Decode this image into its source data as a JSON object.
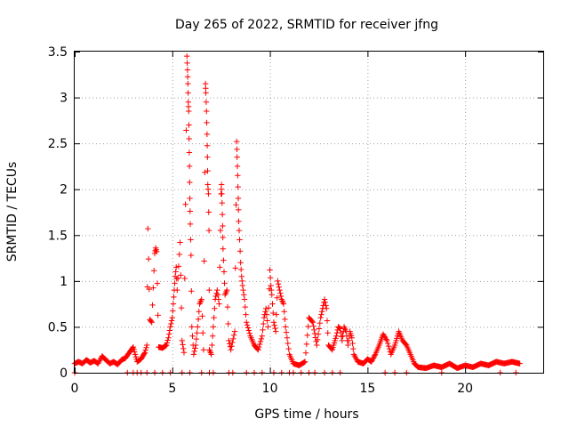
{
  "chart_data": {
    "type": "scatter",
    "title": "Day 265 of 2022, SRMTID for receiver jfng",
    "xlabel": "GPS time / hours",
    "ylabel": "SRMTID / TECUs",
    "xlim": [
      0,
      24
    ],
    "ylim": [
      0,
      3.5
    ],
    "xticks": [
      0,
      5,
      10,
      15,
      20
    ],
    "xtick_labels": [
      "0",
      "5",
      "10",
      "15",
      "20"
    ],
    "yticks": [
      0,
      0.5,
      1,
      1.5,
      2,
      2.5,
      3,
      3.5
    ],
    "ytick_labels": [
      "0",
      "0.5",
      "1",
      "1.5",
      "2",
      "2.5",
      "3",
      "3.5"
    ],
    "grid": true,
    "marker": "+",
    "color": "#ff0000",
    "series": [
      {
        "name": "SRMTID",
        "points": [
          [
            0.0,
            0.1
          ],
          [
            0.2,
            0.12
          ],
          [
            0.4,
            0.1
          ],
          [
            0.6,
            0.14
          ],
          [
            0.8,
            0.11
          ],
          [
            1.0,
            0.13
          ],
          [
            1.2,
            0.1
          ],
          [
            1.4,
            0.18
          ],
          [
            1.6,
            0.14
          ],
          [
            1.8,
            0.1
          ],
          [
            2.0,
            0.12
          ],
          [
            2.2,
            0.09
          ],
          [
            2.4,
            0.14
          ],
          [
            2.6,
            0.16
          ],
          [
            2.8,
            0.22
          ],
          [
            3.0,
            0.28
          ],
          [
            3.2,
            0.12
          ],
          [
            3.4,
            0.15
          ],
          [
            3.6,
            0.22
          ],
          [
            3.7,
            0.3
          ],
          [
            3.75,
            1.57
          ],
          [
            3.85,
            0.58
          ],
          [
            3.95,
            0.55
          ],
          [
            4.1,
            1.3
          ],
          [
            4.15,
            1.36
          ],
          [
            4.2,
            1.32
          ],
          [
            4.3,
            0.28
          ],
          [
            4.5,
            0.27
          ],
          [
            4.7,
            0.3
          ],
          [
            4.8,
            0.38
          ],
          [
            4.9,
            0.5
          ],
          [
            5.0,
            0.6
          ],
          [
            5.05,
            0.75
          ],
          [
            5.1,
            0.9
          ],
          [
            5.15,
            1.05
          ],
          [
            5.2,
            1.15
          ],
          [
            5.25,
            0.9
          ],
          [
            5.4,
            1.42
          ],
          [
            5.5,
            0.35
          ],
          [
            5.6,
            0.22
          ],
          [
            5.75,
            3.45
          ],
          [
            5.78,
            3.3
          ],
          [
            5.8,
            3.15
          ],
          [
            5.82,
            2.95
          ],
          [
            5.84,
            2.85
          ],
          [
            5.86,
            2.55
          ],
          [
            5.88,
            2.25
          ],
          [
            5.9,
            1.9
          ],
          [
            5.92,
            1.62
          ],
          [
            5.96,
            1.28
          ],
          [
            6.0,
            0.5
          ],
          [
            6.1,
            0.2
          ],
          [
            6.2,
            0.3
          ],
          [
            6.3,
            0.5
          ],
          [
            6.4,
            0.75
          ],
          [
            6.5,
            0.8
          ],
          [
            6.6,
            0.25
          ],
          [
            6.7,
            3.15
          ],
          [
            6.72,
            3.05
          ],
          [
            6.75,
            2.85
          ],
          [
            6.78,
            2.6
          ],
          [
            6.8,
            2.35
          ],
          [
            6.82,
            2.05
          ],
          [
            6.85,
            1.95
          ],
          [
            6.88,
            1.55
          ],
          [
            6.9,
            0.25
          ],
          [
            7.0,
            0.2
          ],
          [
            7.2,
            0.8
          ],
          [
            7.3,
            0.9
          ],
          [
            7.4,
            0.75
          ],
          [
            7.5,
            1.95
          ],
          [
            7.52,
            2.05
          ],
          [
            7.55,
            1.85
          ],
          [
            7.58,
            1.6
          ],
          [
            7.6,
            1.35
          ],
          [
            7.65,
            1.1
          ],
          [
            7.7,
            0.85
          ],
          [
            7.8,
            0.9
          ],
          [
            7.9,
            0.35
          ],
          [
            8.0,
            0.25
          ],
          [
            8.2,
            0.45
          ],
          [
            8.3,
            2.52
          ],
          [
            8.32,
            2.35
          ],
          [
            8.35,
            2.15
          ],
          [
            8.38,
            1.9
          ],
          [
            8.4,
            1.65
          ],
          [
            8.45,
            1.45
          ],
          [
            8.5,
            1.2
          ],
          [
            8.55,
            1.05
          ],
          [
            8.6,
            0.95
          ],
          [
            8.7,
            0.8
          ],
          [
            8.8,
            0.55
          ],
          [
            9.0,
            0.4
          ],
          [
            9.2,
            0.3
          ],
          [
            9.4,
            0.25
          ],
          [
            9.6,
            0.4
          ],
          [
            9.7,
            0.6
          ],
          [
            9.8,
            0.7
          ],
          [
            9.9,
            0.5
          ],
          [
            10.0,
            1.12
          ],
          [
            10.05,
            0.95
          ],
          [
            10.1,
            0.85
          ],
          [
            10.2,
            0.55
          ],
          [
            10.3,
            0.45
          ],
          [
            10.4,
            1.0
          ],
          [
            10.5,
            0.9
          ],
          [
            10.6,
            0.8
          ],
          [
            10.7,
            0.75
          ],
          [
            10.8,
            0.5
          ],
          [
            11.0,
            0.2
          ],
          [
            11.2,
            0.1
          ],
          [
            11.5,
            0.08
          ],
          [
            11.8,
            0.12
          ],
          [
            12.0,
            0.6
          ],
          [
            12.2,
            0.55
          ],
          [
            12.4,
            0.3
          ],
          [
            12.6,
            0.6
          ],
          [
            12.8,
            0.8
          ],
          [
            12.9,
            0.7
          ],
          [
            13.0,
            0.3
          ],
          [
            13.2,
            0.25
          ],
          [
            13.4,
            0.4
          ],
          [
            13.5,
            0.5
          ],
          [
            13.6,
            0.48
          ],
          [
            13.7,
            0.35
          ],
          [
            13.8,
            0.5
          ],
          [
            13.9,
            0.45
          ],
          [
            14.0,
            0.3
          ],
          [
            14.1,
            0.45
          ],
          [
            14.2,
            0.38
          ],
          [
            14.3,
            0.2
          ],
          [
            14.5,
            0.12
          ],
          [
            14.8,
            0.1
          ],
          [
            15.0,
            0.15
          ],
          [
            15.2,
            0.12
          ],
          [
            15.4,
            0.2
          ],
          [
            15.6,
            0.3
          ],
          [
            15.8,
            0.42
          ],
          [
            16.0,
            0.35
          ],
          [
            16.2,
            0.2
          ],
          [
            16.4,
            0.3
          ],
          [
            16.6,
            0.45
          ],
          [
            16.8,
            0.35
          ],
          [
            17.0,
            0.3
          ],
          [
            17.2,
            0.2
          ],
          [
            17.4,
            0.1
          ],
          [
            17.6,
            0.06
          ],
          [
            18.0,
            0.05
          ],
          [
            18.4,
            0.08
          ],
          [
            18.8,
            0.06
          ],
          [
            19.2,
            0.1
          ],
          [
            19.6,
            0.05
          ],
          [
            20.0,
            0.08
          ],
          [
            20.4,
            0.06
          ],
          [
            20.8,
            0.1
          ],
          [
            21.2,
            0.08
          ],
          [
            21.6,
            0.12
          ],
          [
            22.0,
            0.1
          ],
          [
            22.4,
            0.12
          ],
          [
            22.8,
            0.1
          ]
        ]
      }
    ],
    "zero_points_x": [
      0.0,
      2.7,
      3.0,
      3.2,
      3.4,
      3.7,
      4.1,
      4.5,
      4.9,
      5.5,
      5.9,
      6.5,
      6.9,
      7.1,
      7.9,
      8.1,
      8.8,
      9.2,
      9.6,
      10.2,
      10.6,
      11.0,
      11.2,
      11.6,
      12.0,
      12.3,
      12.8,
      13.2,
      13.6,
      15.9,
      16.4,
      17.0,
      18.8,
      21.8,
      22.6
    ]
  }
}
